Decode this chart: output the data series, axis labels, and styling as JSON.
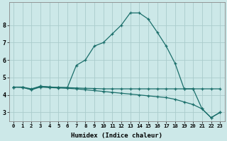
{
  "xlabel": "Humidex (Indice chaleur)",
  "bg_color": "#cce8e8",
  "line_color": "#1a6e6a",
  "grid_color": "#aacccc",
  "xlim": [
    -0.5,
    23.5
  ],
  "ylim": [
    2.5,
    9.3
  ],
  "yticks": [
    3,
    4,
    5,
    6,
    7,
    8
  ],
  "xticks": [
    0,
    1,
    2,
    3,
    4,
    5,
    6,
    7,
    8,
    9,
    10,
    11,
    12,
    13,
    14,
    15,
    16,
    17,
    18,
    19,
    20,
    21,
    22,
    23
  ],
  "line1_x": [
    0,
    1,
    2,
    3,
    4,
    5,
    6,
    7,
    8,
    9,
    10,
    11,
    12,
    13,
    14,
    15,
    16,
    17,
    18,
    19,
    20,
    21,
    22,
    23
  ],
  "line1_y": [
    4.45,
    4.45,
    4.3,
    4.5,
    4.45,
    4.43,
    4.42,
    4.4,
    4.38,
    4.37,
    4.35,
    4.35,
    4.35,
    4.35,
    4.35,
    4.35,
    4.35,
    4.35,
    4.35,
    4.35,
    4.35,
    4.35,
    4.35,
    4.35
  ],
  "line2_x": [
    0,
    1,
    2,
    3,
    4,
    5,
    6,
    7,
    8,
    9,
    10,
    11,
    12,
    13,
    14,
    15,
    16,
    17,
    18,
    19,
    20,
    21,
    22,
    23
  ],
  "line2_y": [
    4.45,
    4.45,
    4.35,
    4.5,
    4.46,
    4.43,
    4.42,
    5.7,
    6.0,
    6.8,
    7.0,
    7.5,
    8.0,
    8.7,
    8.7,
    8.35,
    7.6,
    6.8,
    5.8,
    4.35,
    4.35,
    3.2,
    2.7,
    3.0
  ],
  "line3_x": [
    0,
    1,
    2,
    3,
    4,
    5,
    6,
    7,
    8,
    9,
    10,
    11,
    12,
    13,
    14,
    15,
    16,
    17,
    18,
    19,
    20,
    21,
    22,
    23
  ],
  "line3_y": [
    4.45,
    4.43,
    4.3,
    4.45,
    4.42,
    4.4,
    4.38,
    4.35,
    4.3,
    4.25,
    4.2,
    4.15,
    4.1,
    4.05,
    4.0,
    3.95,
    3.9,
    3.85,
    3.75,
    3.6,
    3.45,
    3.2,
    2.7,
    3.0
  ]
}
